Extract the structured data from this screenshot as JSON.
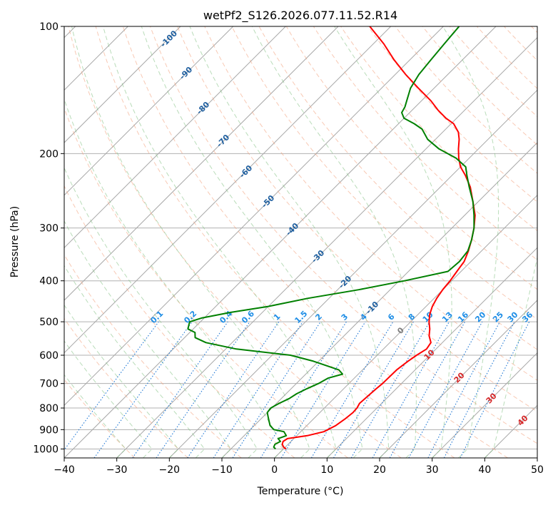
{
  "chart_data": {
    "type": "line",
    "title": "wetPf2_S126.2026.077.11.52.R14",
    "xlabel": "Temperature (°C)",
    "ylabel": "Pressure (hPa)",
    "xlim": [
      -40,
      50
    ],
    "ylim": [
      1050,
      100
    ],
    "y_scale": "log",
    "grid": true,
    "x_ticks": [
      -40,
      -30,
      -20,
      -10,
      0,
      10,
      20,
      30,
      40,
      50
    ],
    "x_tick_labels": [
      "−40",
      "−30",
      "−20",
      "−10",
      "0",
      "10",
      "20",
      "30",
      "40",
      "50"
    ],
    "y_ticks": [
      100,
      200,
      300,
      400,
      500,
      600,
      700,
      800,
      900,
      1000
    ],
    "y_tick_labels": [
      "100",
      "200",
      "300",
      "400",
      "500",
      "600",
      "700",
      "800",
      "900",
      "1000"
    ],
    "series": [
      {
        "color": "#ff0000",
        "points": [
          [
            1000,
            0.5
          ],
          [
            990,
            -0.3
          ],
          [
            975,
            -1.1
          ],
          [
            960,
            -1.5
          ],
          [
            945,
            -1.2
          ],
          [
            930,
            2.0
          ],
          [
            910,
            4.4
          ],
          [
            880,
            5.5
          ],
          [
            850,
            6.0
          ],
          [
            820,
            6.3
          ],
          [
            800,
            6.2
          ],
          [
            780,
            5.8
          ],
          [
            750,
            6.0
          ],
          [
            720,
            6.2
          ],
          [
            700,
            6.4
          ],
          [
            650,
            6.5
          ],
          [
            620,
            7.0
          ],
          [
            600,
            7.5
          ],
          [
            580,
            8.2
          ],
          [
            560,
            7.8
          ],
          [
            540,
            6.2
          ],
          [
            520,
            5.0
          ],
          [
            500,
            3.5
          ],
          [
            480,
            2.2
          ],
          [
            460,
            1.2
          ],
          [
            440,
            0.5
          ],
          [
            420,
            0.0
          ],
          [
            400,
            -0.3
          ],
          [
            380,
            -0.8
          ],
          [
            360,
            -1.3
          ],
          [
            340,
            -2.5
          ],
          [
            320,
            -4.0
          ],
          [
            300,
            -5.8
          ],
          [
            280,
            -8.0
          ],
          [
            260,
            -11.0
          ],
          [
            240,
            -14.3
          ],
          [
            225,
            -17.5
          ],
          [
            215,
            -20.0
          ],
          [
            205,
            -22.0
          ],
          [
            195,
            -23.8
          ],
          [
            185,
            -25.5
          ],
          [
            178,
            -27.0
          ],
          [
            170,
            -29.5
          ],
          [
            165,
            -32.0
          ],
          [
            158,
            -35.0
          ],
          [
            150,
            -38.2
          ],
          [
            140,
            -43.0
          ],
          [
            130,
            -48.0
          ],
          [
            120,
            -53.0
          ],
          [
            110,
            -58.0
          ],
          [
            100,
            -64.0
          ]
        ]
      },
      {
        "color": "#008000",
        "points": [
          [
            1000,
            -1.5
          ],
          [
            990,
            -2.2
          ],
          [
            975,
            -2.5
          ],
          [
            960,
            -2.0
          ],
          [
            945,
            -3.0
          ],
          [
            930,
            -2.0
          ],
          [
            910,
            -3.2
          ],
          [
            900,
            -5.5
          ],
          [
            880,
            -7.0
          ],
          [
            860,
            -8.0
          ],
          [
            840,
            -9.0
          ],
          [
            820,
            -10.0
          ],
          [
            800,
            -10.2
          ],
          [
            780,
            -9.5
          ],
          [
            760,
            -8.5
          ],
          [
            740,
            -8.0
          ],
          [
            720,
            -7.0
          ],
          [
            700,
            -5.8
          ],
          [
            680,
            -5.0
          ],
          [
            665,
            -3.0
          ],
          [
            650,
            -4.5
          ],
          [
            620,
            -11.0
          ],
          [
            600,
            -16.5
          ],
          [
            580,
            -28.0
          ],
          [
            560,
            -35.0
          ],
          [
            545,
            -38.0
          ],
          [
            530,
            -39.0
          ],
          [
            520,
            -41.0
          ],
          [
            505,
            -41.8
          ],
          [
            500,
            -42.0
          ],
          [
            490,
            -40.5
          ],
          [
            475,
            -36.0
          ],
          [
            460,
            -30.0
          ],
          [
            440,
            -24.0
          ],
          [
            420,
            -16.0
          ],
          [
            400,
            -9.0
          ],
          [
            380,
            -2.5
          ],
          [
            360,
            -2.2
          ],
          [
            340,
            -2.6
          ],
          [
            320,
            -4.0
          ],
          [
            300,
            -5.8
          ],
          [
            280,
            -8.2
          ],
          [
            260,
            -11.0
          ],
          [
            240,
            -14.5
          ],
          [
            225,
            -17.2
          ],
          [
            215,
            -19.0
          ],
          [
            205,
            -22.5
          ],
          [
            195,
            -27.5
          ],
          [
            185,
            -31.5
          ],
          [
            175,
            -34.5
          ],
          [
            170,
            -37.0
          ],
          [
            165,
            -40.0
          ],
          [
            160,
            -41.5
          ],
          [
            155,
            -42.0
          ],
          [
            150,
            -42.8
          ],
          [
            140,
            -44.5
          ],
          [
            130,
            -45.5
          ],
          [
            120,
            -46.0
          ],
          [
            110,
            -46.5
          ],
          [
            100,
            -47.0
          ]
        ]
      }
    ],
    "dry_adiabat_labels": [
      "-100",
      "-90",
      "-80",
      "-70",
      "-60",
      "-50",
      "-40",
      "-30",
      "-20",
      "-10",
      "0",
      "10",
      "20",
      "30",
      "40"
    ],
    "mixing_ratio_labels": [
      "0.1",
      "0.2",
      "0.4",
      "0.6",
      "1",
      "1.5",
      "2",
      "3",
      "4",
      "6",
      "8",
      "10",
      "13",
      "16",
      "20",
      "25",
      "30",
      "36"
    ]
  }
}
